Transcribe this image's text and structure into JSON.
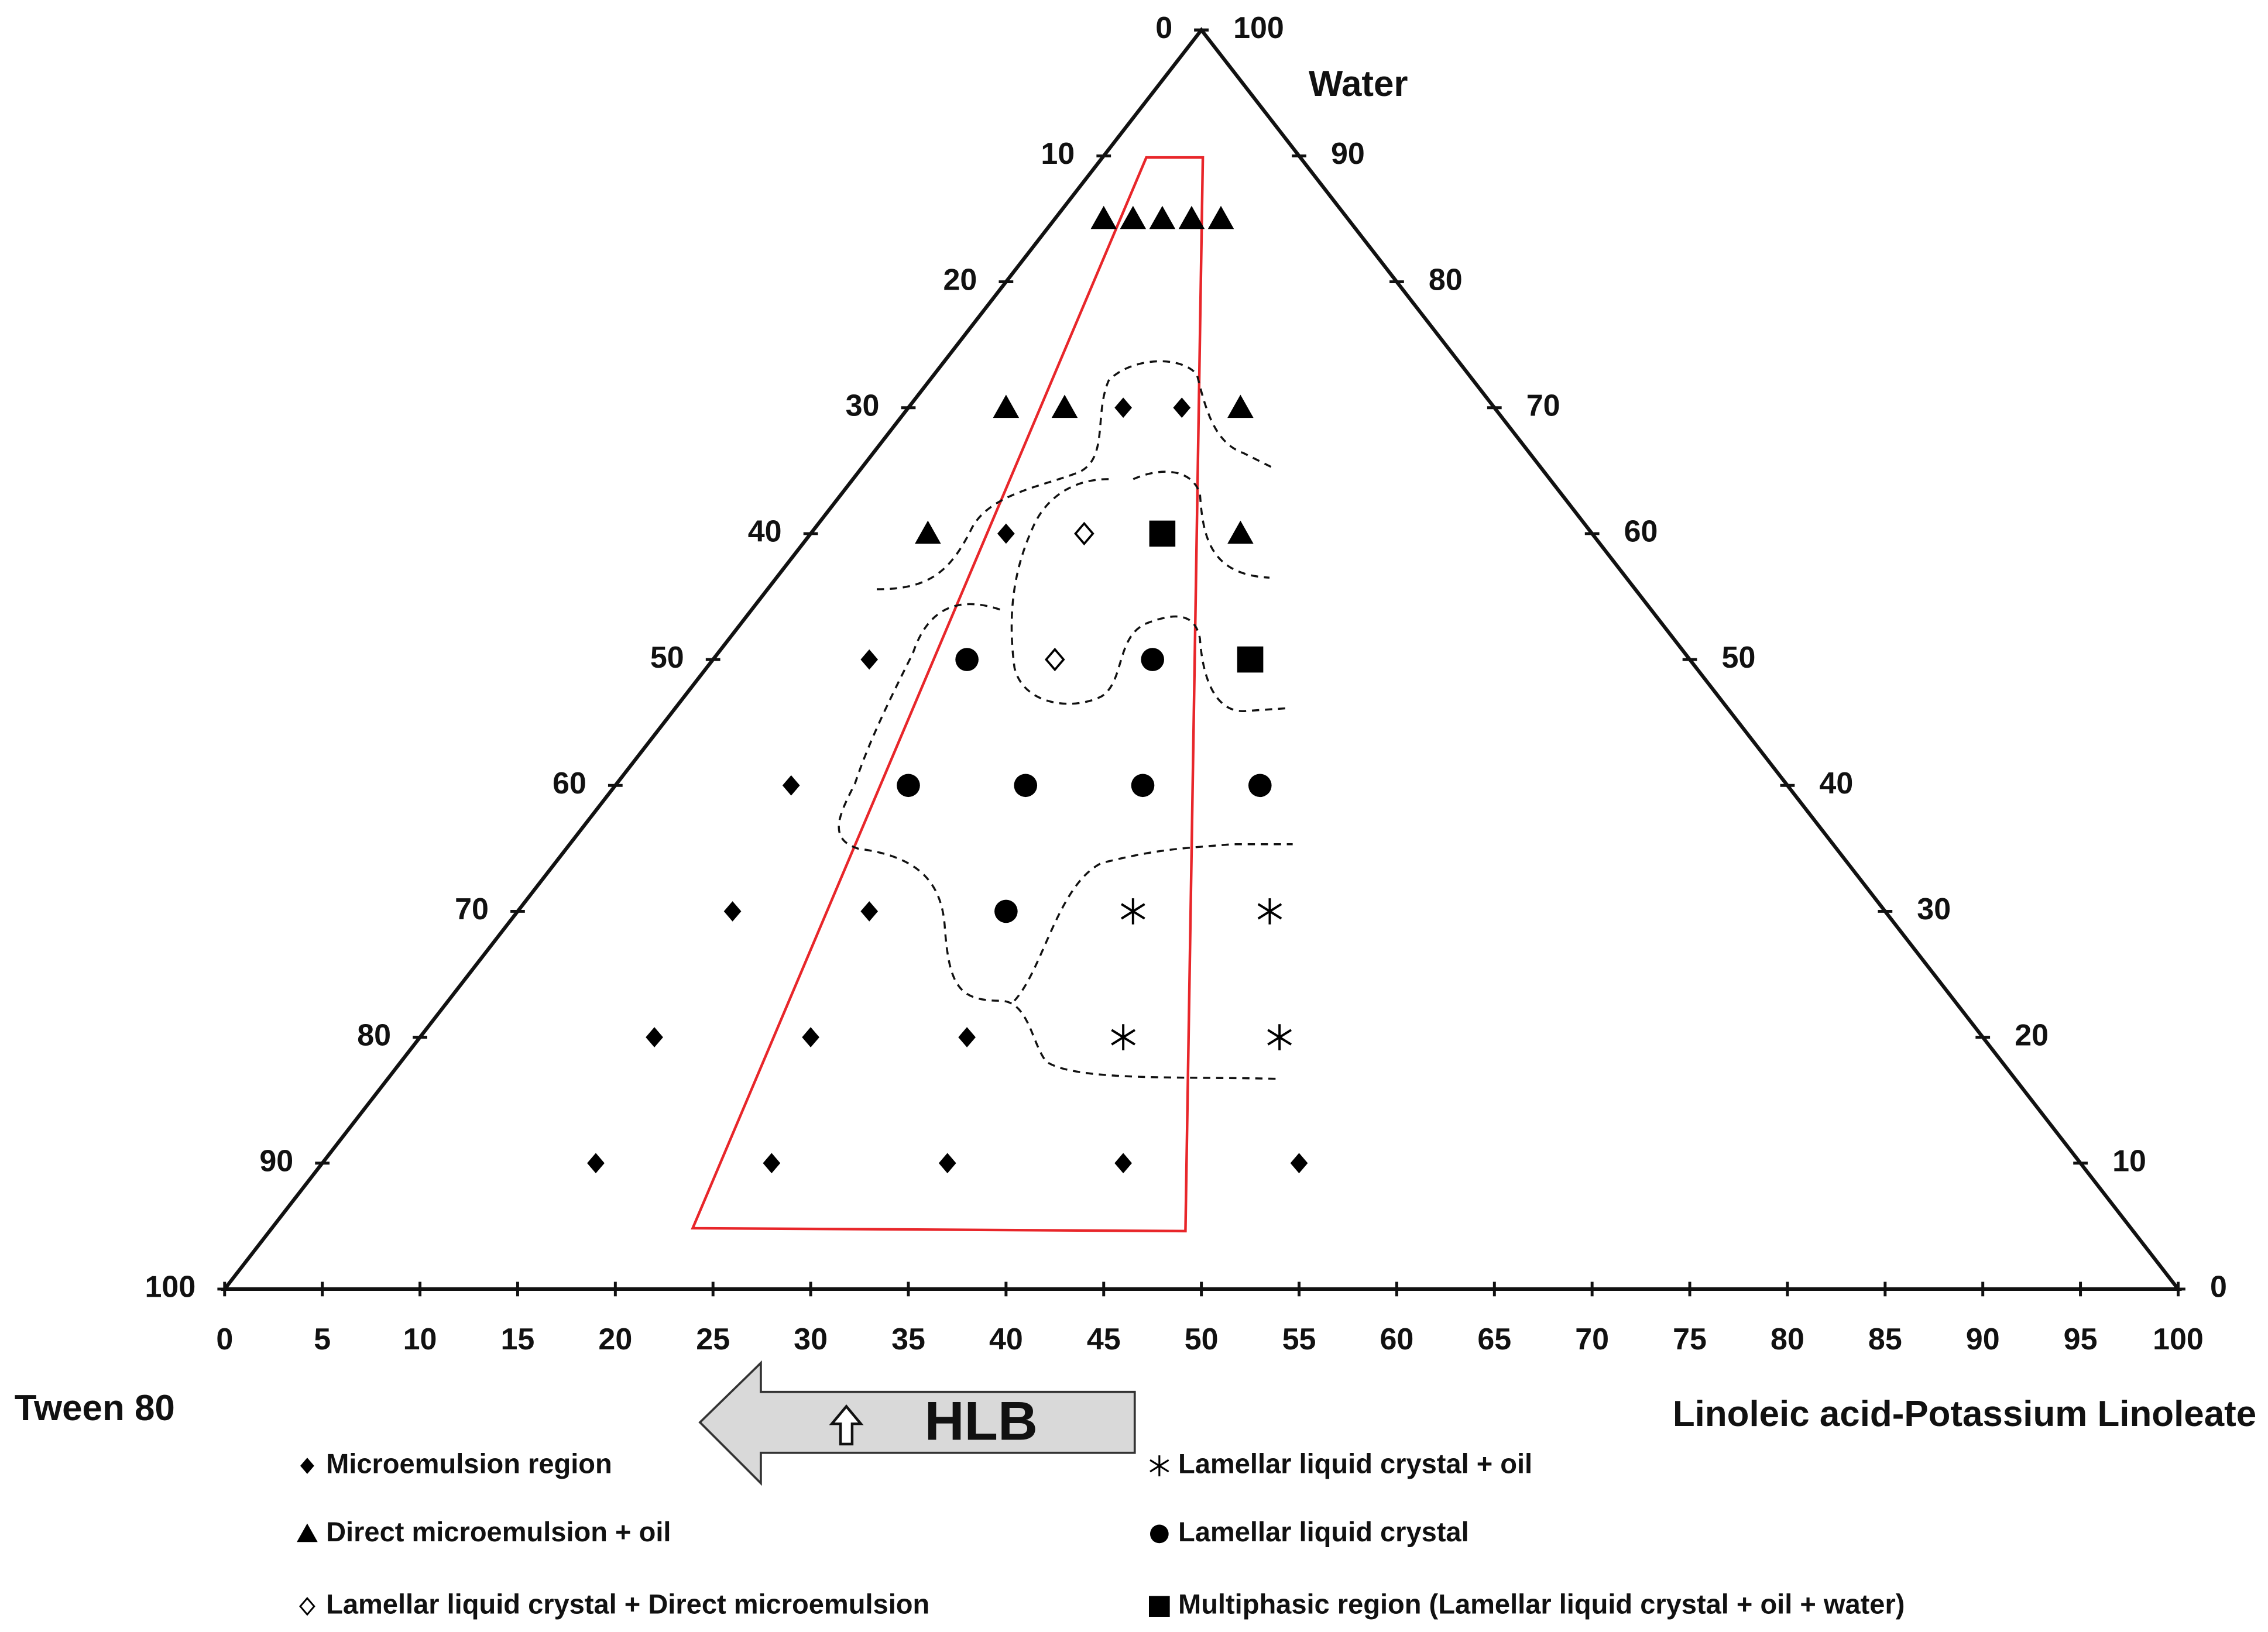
{
  "chart_data": {
    "type": "ternary",
    "corner_labels": {
      "top": "Water",
      "left": "Tween 80",
      "right": "Linoleic acid-Potassium Linoleate"
    },
    "left_ticks": [
      0,
      10,
      20,
      30,
      40,
      50,
      60,
      70,
      80,
      90,
      100
    ],
    "right_ticks": [
      0,
      10,
      20,
      30,
      40,
      50,
      60,
      70,
      80,
      90,
      100
    ],
    "bottom_ticks": [
      0,
      5,
      10,
      15,
      20,
      25,
      30,
      35,
      40,
      45,
      50,
      55,
      60,
      65,
      70,
      75,
      80,
      85,
      90,
      95,
      100
    ],
    "annotation": "HLB",
    "series": [
      {
        "name": "Microemulsion region",
        "marker": "diamond",
        "color": "#000000",
        "water": [
          70,
          70,
          60,
          50,
          40,
          30,
          30,
          20,
          20,
          20,
          10,
          10,
          10,
          10,
          10
        ],
        "linoleate": [
          11,
          14,
          10,
          8,
          9,
          11,
          18,
          12,
          20,
          28,
          14,
          23,
          32,
          41,
          50
        ]
      },
      {
        "name": "Direct microemulsion + oil",
        "marker": "triangle",
        "color": "#000000",
        "water": [
          85,
          85,
          85,
          85,
          85,
          70,
          70,
          70,
          60,
          60
        ],
        "linoleate": [
          2.5,
          4,
          5.5,
          7,
          8.5,
          5,
          8,
          17,
          6,
          22
        ]
      },
      {
        "name": "Lamellar liquid crystal + Direct microemulsion",
        "marker": "open-diamond",
        "color": "#000000",
        "water": [
          60,
          50
        ],
        "linoleate": [
          14,
          17.5
        ]
      },
      {
        "name": "Lamellar liquid crystal + oil",
        "marker": "asterisk",
        "color": "#000000",
        "water": [
          30,
          30,
          20,
          20
        ],
        "linoleate": [
          31.5,
          38.5,
          36,
          44
        ]
      },
      {
        "name": "Lamellar liquid crystal",
        "marker": "circle",
        "color": "#000000",
        "water": [
          50,
          50,
          40,
          40,
          40,
          40,
          30
        ],
        "linoleate": [
          13,
          22.5,
          15,
          21,
          27,
          33,
          25
        ]
      },
      {
        "name": "Multiphasic region (Lamellar liquid crystal + oil + water)",
        "marker": "square",
        "color": "#000000",
        "water": [
          60,
          50
        ],
        "linoleate": [
          18,
          27.5
        ]
      }
    ]
  }
}
